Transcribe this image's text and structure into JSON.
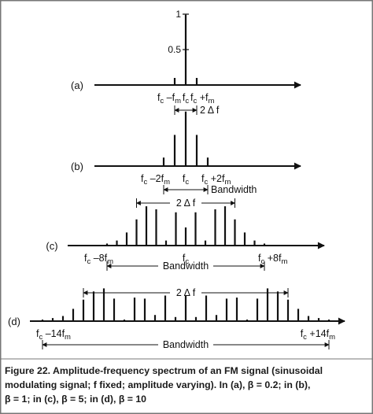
{
  "figure": {
    "caption_lines": [
      "Figure 22. Amplitude-frequency spectrum of an FM signal (sinusoidal",
      "modulating signal; f fixed; amplitude varying). In (a), β = 0.2; in (b),",
      "β = 1; in (c), β = 5; in (d), β = 10"
    ]
  },
  "chart_data": [
    {
      "type": "bar",
      "panel_label": "(a)",
      "beta": 0.2,
      "harmonics": [
        -1,
        0,
        1
      ],
      "values": [
        0.1,
        0.99,
        0.1
      ],
      "ylim": [
        0,
        1
      ],
      "y_ticks": [
        {
          "value": 1,
          "label": "1"
        },
        {
          "value": 0.5,
          "label": "0.5"
        }
      ],
      "tick_labels": [
        {
          "n": -1,
          "text": "f​c –f​m"
        },
        {
          "n": 0,
          "text": "f​c"
        },
        {
          "n": 1,
          "text": "f​c +f​m"
        }
      ],
      "annotations": [
        {
          "text": "2 Δ f",
          "from_n": -1,
          "to_n": 1
        }
      ]
    },
    {
      "type": "bar",
      "panel_label": "(b)",
      "beta": 1,
      "harmonics": [
        -2,
        -1,
        0,
        1,
        2
      ],
      "values": [
        0.12,
        0.44,
        0.77,
        0.44,
        0.12
      ],
      "tick_labels": [
        {
          "n": -2,
          "text": "f​c –2f​m"
        },
        {
          "n": 0,
          "text": "f​c"
        },
        {
          "n": 2,
          "text": "f​c +2f​m"
        }
      ],
      "annotations": [
        {
          "text": "Bandwidth",
          "from_n": -2,
          "to_n": 2
        }
      ]
    },
    {
      "type": "bar",
      "panel_label": "(c)",
      "beta": 5,
      "harmonics": [
        -8,
        -7,
        -6,
        -5,
        -4,
        -3,
        -2,
        -1,
        0,
        1,
        2,
        3,
        4,
        5,
        6,
        7,
        8
      ],
      "values": [
        0.02,
        0.05,
        0.13,
        0.26,
        0.39,
        0.36,
        0.05,
        0.33,
        0.18,
        0.33,
        0.05,
        0.36,
        0.39,
        0.26,
        0.13,
        0.05,
        0.02
      ],
      "tick_labels": [
        {
          "n": -8,
          "text": "f​c –8f​m"
        },
        {
          "n": 0,
          "text": "f​c"
        },
        {
          "n": 8,
          "text": "f​c +8f​m"
        }
      ],
      "annotations": [
        {
          "text": "2 Δ f",
          "from_n": -5,
          "to_n": 5
        },
        {
          "text": "Bandwidth",
          "from_n": -8,
          "to_n": 8
        }
      ]
    },
    {
      "type": "bar",
      "panel_label": "(d)",
      "beta": 10,
      "harmonics": [
        -14,
        -13,
        -12,
        -11,
        -10,
        -9,
        -8,
        -7,
        -6,
        -5,
        -4,
        -3,
        -2,
        -1,
        0,
        1,
        2,
        3,
        4,
        5,
        6,
        7,
        8,
        9,
        10,
        11,
        12,
        13,
        14
      ],
      "values": [
        0.01,
        0.03,
        0.05,
        0.12,
        0.21,
        0.29,
        0.32,
        0.22,
        0.01,
        0.23,
        0.22,
        0.06,
        0.25,
        0.04,
        0.25,
        0.04,
        0.25,
        0.06,
        0.22,
        0.23,
        0.01,
        0.22,
        0.32,
        0.29,
        0.21,
        0.12,
        0.05,
        0.03,
        0.01
      ],
      "tick_labels": [
        {
          "n": -14,
          "text": "f​c –14f​m"
        },
        {
          "n": 14,
          "text": "f​c +14f​m"
        }
      ],
      "annotations": [
        {
          "text": "2 Δ f",
          "from_n": -10,
          "to_n": 10
        },
        {
          "text": "Bandwidth",
          "from_n": -14,
          "to_n": 14
        }
      ]
    }
  ]
}
